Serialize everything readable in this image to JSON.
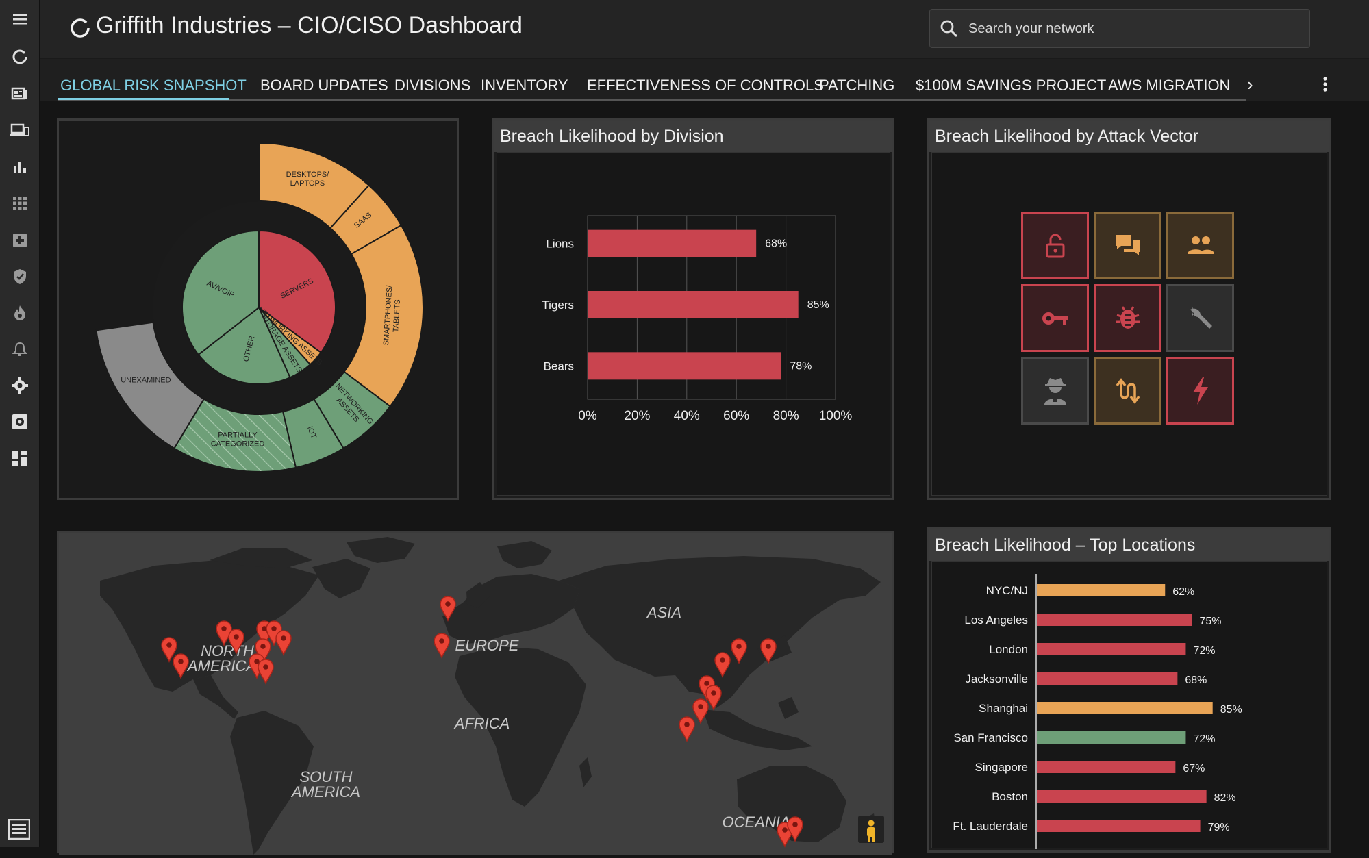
{
  "app": {
    "title": "Griffith Industries – CIO/CISO Dashboard",
    "search_placeholder": "Search your network"
  },
  "sidebar": {
    "items": [
      {
        "icon": "hamburger-menu-icon"
      },
      {
        "icon": "refresh-icon"
      },
      {
        "icon": "news-icon"
      },
      {
        "icon": "devices-icon"
      },
      {
        "icon": "bar-chart-icon"
      },
      {
        "icon": "apps-grid-icon"
      },
      {
        "icon": "medical-plus-icon"
      },
      {
        "icon": "shield-check-icon"
      },
      {
        "icon": "fire-icon"
      },
      {
        "icon": "bell-icon"
      },
      {
        "icon": "gear-icon"
      },
      {
        "icon": "settings-box-icon"
      },
      {
        "icon": "dashboard-icon"
      }
    ],
    "bottom_icon": "collapse-panel-icon"
  },
  "tabs": [
    {
      "label": "GLOBAL RISK SNAPSHOT",
      "active": true
    },
    {
      "label": "BOARD UPDATES"
    },
    {
      "label": "DIVISIONS"
    },
    {
      "label": "INVENTORY"
    },
    {
      "label": "EFFECTIVENESS OF CONTROLS"
    },
    {
      "label": "PATCHING"
    },
    {
      "label": "$100M SAVINGS PROJECT"
    },
    {
      "label": "AWS MIGRATION"
    }
  ],
  "tabs_more": "›",
  "colors": {
    "red": "#c9444f",
    "orange": "#e8a456",
    "green": "#6e9f78",
    "grey": "#8a8a8a",
    "accent": "#7fd0e4"
  },
  "sunburst": {
    "outer": [
      {
        "label": "DESKTOPS/\nLAPTOPS",
        "status": "orange"
      },
      {
        "label": "SAAS",
        "status": "orange"
      },
      {
        "label": "SMARTPHONES/\nTABLETS",
        "status": "orange"
      },
      {
        "label": "NETWORKING\nASSETS",
        "status": "green"
      },
      {
        "label": "IOT",
        "status": "green"
      },
      {
        "label": "PARTIALLY\nCATEGORIZED",
        "status": "green-hatched"
      },
      {
        "label": "UNEXAMINED",
        "status": "grey"
      }
    ],
    "inner": [
      {
        "label": "SERVERS",
        "status": "red"
      },
      {
        "label": "NETWORKING ASSETS",
        "status": "orange"
      },
      {
        "label": "STORAGE ASSETS",
        "status": "green"
      },
      {
        "label": "OTHER",
        "status": "green"
      },
      {
        "label": "AV/VOIP",
        "status": "green"
      }
    ]
  },
  "division_panel": {
    "title": "Breach Likelihood by Division"
  },
  "vector_panel": {
    "title": "Breach Likelihood by Attack Vector",
    "vectors": [
      {
        "icon": "unlock-icon",
        "status": "red"
      },
      {
        "icon": "chat-icon",
        "status": "orange"
      },
      {
        "icon": "people-icon",
        "status": "orange"
      },
      {
        "icon": "key-icon",
        "status": "red"
      },
      {
        "icon": "bug-icon",
        "status": "red"
      },
      {
        "icon": "wrench-icon",
        "status": "grey"
      },
      {
        "icon": "spy-icon",
        "status": "grey"
      },
      {
        "icon": "swap-arrows-icon",
        "status": "orange"
      },
      {
        "icon": "lightning-icon",
        "status": "red"
      }
    ]
  },
  "map": {
    "labels": [
      "NORTH\nAMERICA",
      "EUROPE",
      "ASIA",
      "AFRICA",
      "SOUTH\nAMERICA",
      "OCEANIA"
    ],
    "pin_icon": "map-pin-icon",
    "pegman_icon": "street-view-pegman-icon"
  },
  "locations_panel": {
    "title": "Breach Likelihood – Top Locations"
  },
  "chart_data": [
    {
      "type": "bar",
      "orientation": "horizontal",
      "categories": [
        "Lions",
        "Tigers",
        "Bears"
      ],
      "values": [
        68,
        85,
        78
      ],
      "value_labels": [
        "68%",
        "85%",
        "78%"
      ],
      "xlim": [
        0,
        100
      ],
      "xticks": [
        "0%",
        "20%",
        "40%",
        "60%",
        "80%",
        "100%"
      ],
      "grid": true
    },
    {
      "type": "bar",
      "orientation": "horizontal",
      "categories": [
        "NYC/NJ",
        "Los Angeles",
        "London",
        "Jacksonville",
        "Shanghai",
        "San Francisco",
        "Singapore",
        "Boston",
        "Ft. Lauderdale"
      ],
      "values": [
        62,
        75,
        72,
        68,
        85,
        72,
        67,
        82,
        79
      ],
      "value_labels": [
        "62%",
        "75%",
        "72%",
        "68%",
        "85%",
        "72%",
        "67%",
        "82%",
        "79%"
      ],
      "bar_colors": [
        "orange",
        "red",
        "red",
        "red",
        "orange",
        "green",
        "red",
        "red",
        "red"
      ],
      "xlim": [
        0,
        100
      ]
    }
  ]
}
